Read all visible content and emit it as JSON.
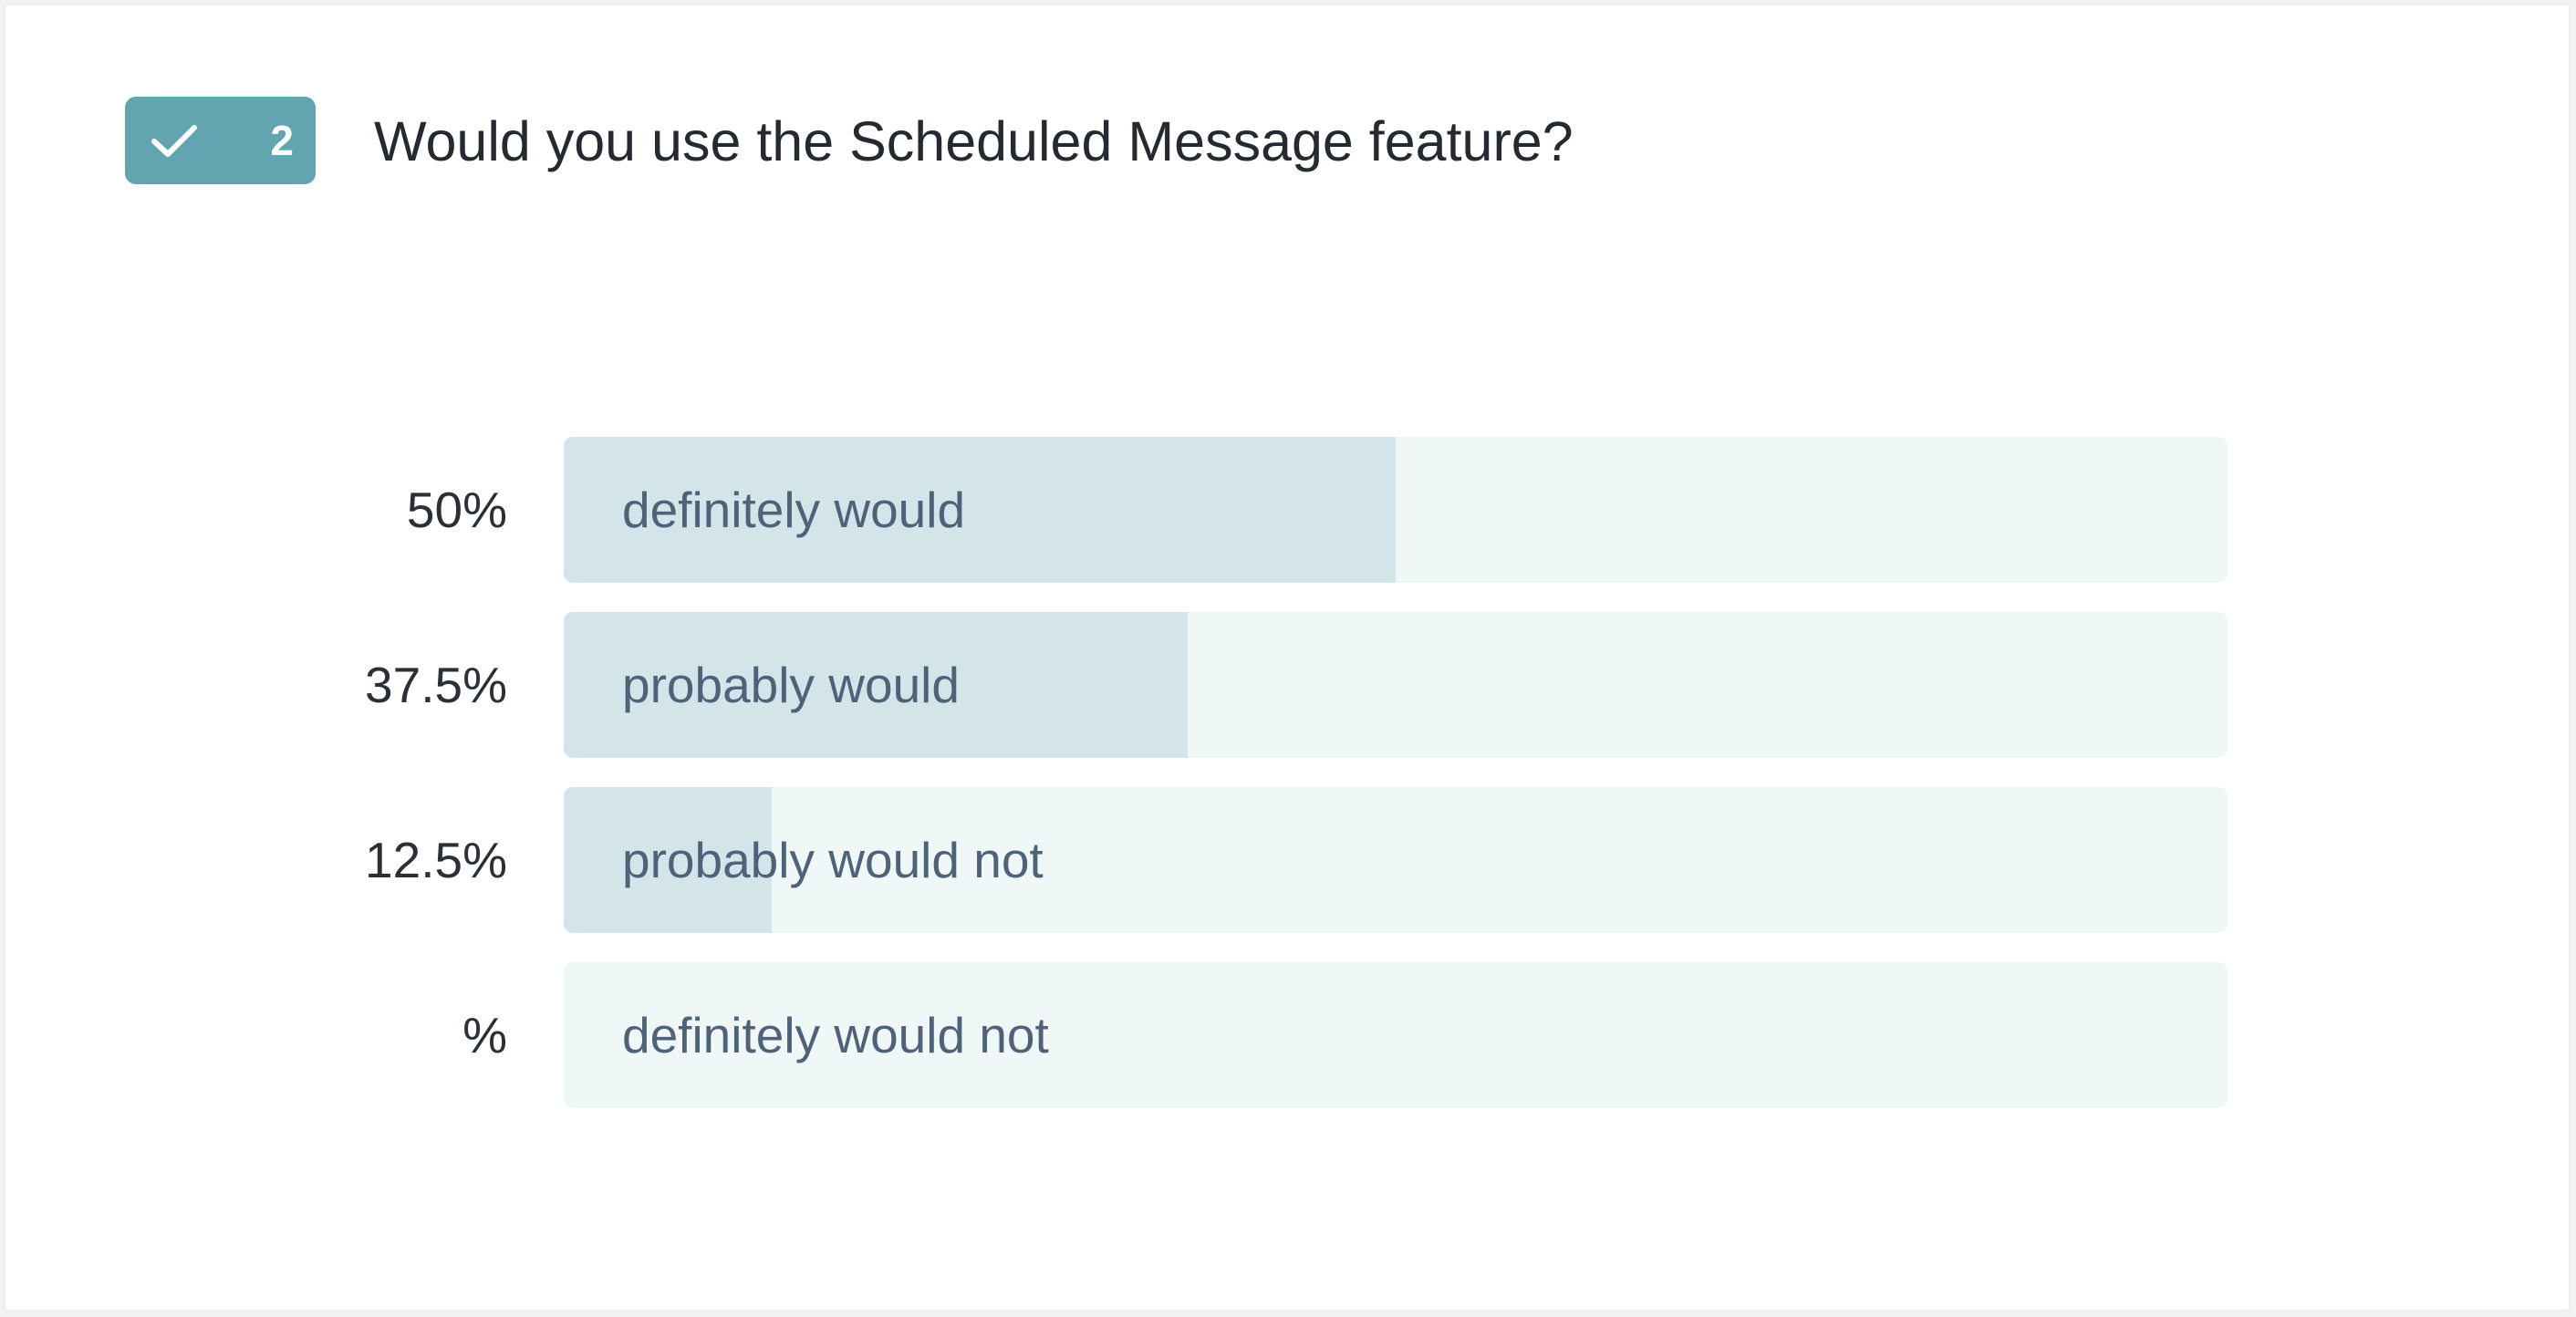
{
  "question": {
    "number": "2",
    "badge_icon": "check-icon",
    "title": "Would you use the Scheduled Message feature?",
    "accent_color": "#62a5b0"
  },
  "results": [
    {
      "percent_label": "50%",
      "label": "definitely would",
      "fraction": 0.5
    },
    {
      "percent_label": "37.5%",
      "label": "probably would",
      "fraction": 0.375
    },
    {
      "percent_label": "12.5%",
      "label": "probably would not",
      "fraction": 0.125
    },
    {
      "percent_label": "%",
      "label": "definitely would not",
      "fraction": 0
    }
  ]
}
